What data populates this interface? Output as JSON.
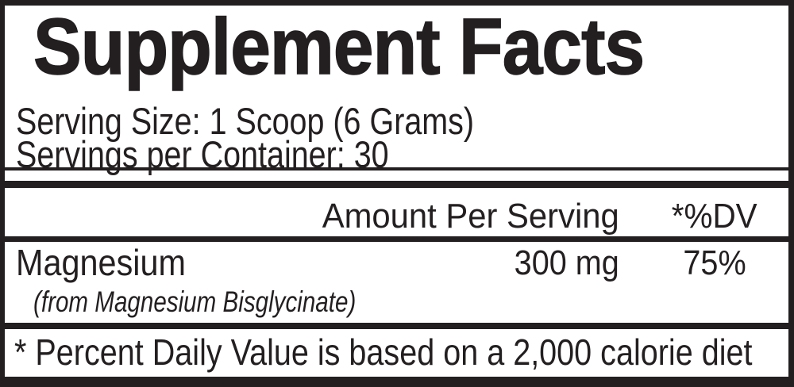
{
  "colors": {
    "ink": "#231f20",
    "paper": "#ffffff"
  },
  "label": {
    "title": "Supplement Facts",
    "serving_size": "Serving Size: 1 Scoop (6 Grams)",
    "servings_per_container": "Servings per Container: 30",
    "columns": {
      "amount_header": "Amount Per Serving",
      "dv_header": "*%DV"
    },
    "rows": [
      {
        "name": "Magnesium",
        "source": "(from Magnesium Bisglycinate)",
        "amount": "300 mg",
        "dv": "75%"
      }
    ],
    "footnote": "* Percent Daily Value is based on a 2,000 calorie diet"
  }
}
